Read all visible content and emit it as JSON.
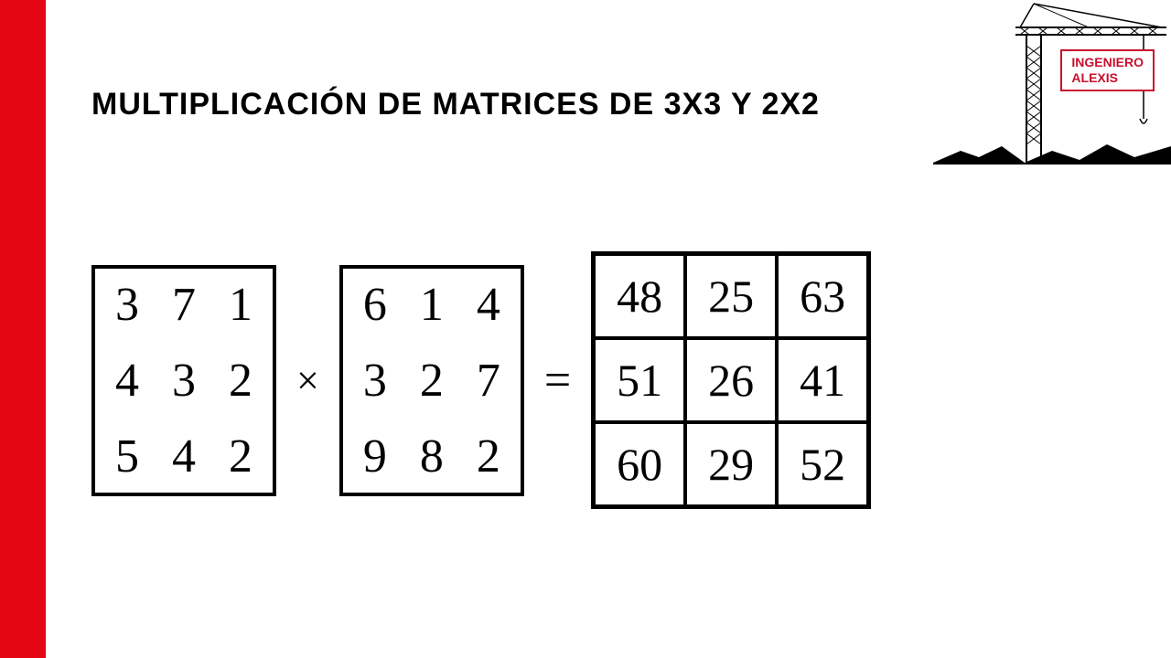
{
  "layout": {
    "red_bar_color": "#e40613",
    "background_color": "#ffffff"
  },
  "title": {
    "text": "MULTIPLICACIÓN DE MATRICES DE 3X3 Y 2X2",
    "fontsize": 34,
    "color": "#000000"
  },
  "logo": {
    "line1": "INGENIERO",
    "line2": "ALEXIS",
    "border_color": "#c8102e",
    "text_color": "#c8102e"
  },
  "equation": {
    "matrix_a": {
      "type": "matrix-plain",
      "rows": [
        [
          "3",
          "7",
          "1"
        ],
        [
          "4",
          "3",
          "2"
        ],
        [
          "5",
          "4",
          "2"
        ]
      ],
      "fontsize": 52,
      "border_color": "#000000"
    },
    "op_mult": {
      "symbol": "×",
      "fontsize": 44
    },
    "matrix_b": {
      "type": "matrix-plain",
      "rows": [
        [
          "6",
          "1",
          "4"
        ],
        [
          "3",
          "2",
          "7"
        ],
        [
          "9",
          "8",
          "2"
        ]
      ],
      "fontsize": 52,
      "border_color": "#000000"
    },
    "op_eq": {
      "symbol": "=",
      "fontsize": 52
    },
    "matrix_c": {
      "type": "matrix-grid",
      "rows": [
        [
          "48",
          "25",
          "63"
        ],
        [
          "51",
          "26",
          "41"
        ],
        [
          "60",
          "29",
          "52"
        ]
      ],
      "fontsize": 50,
      "border_color": "#000000"
    }
  }
}
